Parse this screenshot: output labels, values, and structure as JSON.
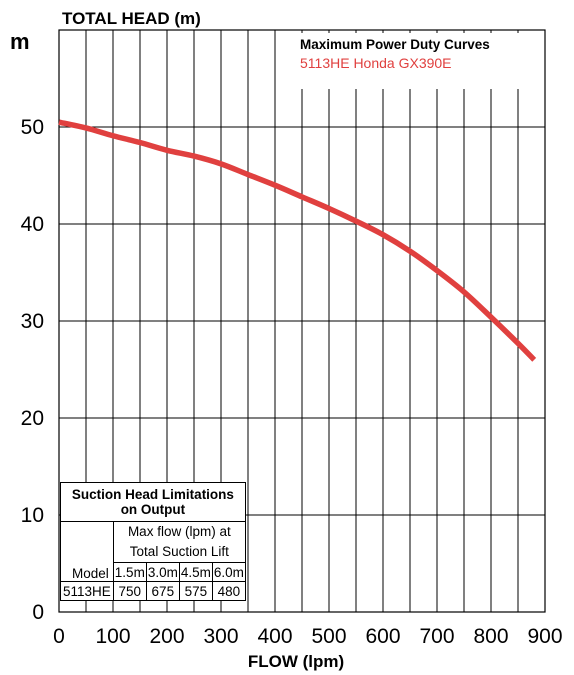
{
  "chart_data": {
    "type": "line",
    "ylabel": "TOTAL HEAD (m)",
    "yunit": "m",
    "xlabel": "FLOW (lpm)",
    "xlim": [
      0,
      900
    ],
    "ylim": [
      0,
      60
    ],
    "xticks": [
      "0",
      "100",
      "200",
      "300",
      "400",
      "500",
      "600",
      "700",
      "800",
      "900"
    ],
    "yticks": [
      "0",
      "10",
      "20",
      "30",
      "40",
      "50"
    ],
    "grid": true,
    "legend": {
      "title": "Maximum Power Duty Curves",
      "placement": "top-right"
    },
    "series": [
      {
        "name": "5113HE Honda GX390E",
        "color": "#e0403f",
        "x": [
          0,
          50,
          100,
          150,
          200,
          250,
          300,
          350,
          400,
          450,
          500,
          550,
          600,
          650,
          700,
          750,
          800,
          850,
          880
        ],
        "y": [
          50.5,
          49.9,
          49.1,
          48.4,
          47.6,
          47.0,
          46.2,
          45.1,
          44.0,
          42.8,
          41.6,
          40.3,
          38.9,
          37.2,
          35.2,
          33.0,
          30.4,
          27.7,
          26.0
        ]
      }
    ]
  },
  "suction_table": {
    "title_line1": "Suction Head Limitations",
    "title_line2": "on Output",
    "maxflow_line1": "Max flow (lpm) at",
    "maxflow_line2": "Total Suction Lift",
    "model_header": "Model",
    "lift_headers": [
      "1.5m",
      "3.0m",
      "4.5m",
      "6.0m"
    ],
    "rows": [
      {
        "model": "5113HE",
        "values": [
          "750",
          "675",
          "575",
          "480"
        ]
      }
    ]
  }
}
